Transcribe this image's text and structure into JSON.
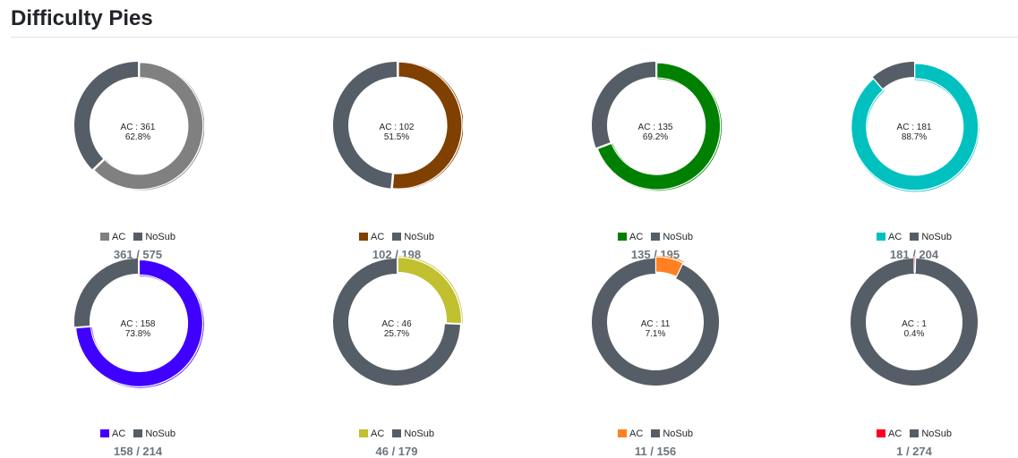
{
  "page": {
    "title": "Difficulty Pies"
  },
  "nosub_color": "#555e66",
  "chart_data": [
    {
      "type": "pie",
      "color": "#808080",
      "series": [
        {
          "name": "AC",
          "value": 361
        },
        {
          "name": "NoSub",
          "value": 214
        }
      ],
      "center": {
        "line1": "AC : 361",
        "line2": "62.8%"
      },
      "legend": [
        "AC",
        "NoSub"
      ],
      "count": "361 / 575"
    },
    {
      "type": "pie",
      "color": "#804000",
      "series": [
        {
          "name": "AC",
          "value": 102
        },
        {
          "name": "NoSub",
          "value": 96
        }
      ],
      "center": {
        "line1": "AC : 102",
        "line2": "51.5%"
      },
      "legend": [
        "AC",
        "NoSub"
      ],
      "count": "102 / 198"
    },
    {
      "type": "pie",
      "color": "#008000",
      "series": [
        {
          "name": "AC",
          "value": 135
        },
        {
          "name": "NoSub",
          "value": 60
        }
      ],
      "center": {
        "line1": "AC : 135",
        "line2": "69.2%"
      },
      "legend": [
        "AC",
        "NoSub"
      ],
      "count": "135 / 195"
    },
    {
      "type": "pie",
      "color": "#00c0c0",
      "series": [
        {
          "name": "AC",
          "value": 181
        },
        {
          "name": "NoSub",
          "value": 23
        }
      ],
      "center": {
        "line1": "AC : 181",
        "line2": "88.7%"
      },
      "legend": [
        "AC",
        "NoSub"
      ],
      "count": "181 / 204"
    },
    {
      "type": "pie",
      "color": "#4000ff",
      "series": [
        {
          "name": "AC",
          "value": 158
        },
        {
          "name": "NoSub",
          "value": 56
        }
      ],
      "center": {
        "line1": "AC : 158",
        "line2": "73.8%"
      },
      "legend": [
        "AC",
        "NoSub"
      ],
      "count": "158 / 214"
    },
    {
      "type": "pie",
      "color": "#c0c030",
      "series": [
        {
          "name": "AC",
          "value": 46
        },
        {
          "name": "NoSub",
          "value": 133
        }
      ],
      "center": {
        "line1": "AC : 46",
        "line2": "25.7%"
      },
      "legend": [
        "AC",
        "NoSub"
      ],
      "count": "46 / 179"
    },
    {
      "type": "pie",
      "color": "#ff8020",
      "series": [
        {
          "name": "AC",
          "value": 11
        },
        {
          "name": "NoSub",
          "value": 145
        }
      ],
      "center": {
        "line1": "AC : 11",
        "line2": "7.1%"
      },
      "legend": [
        "AC",
        "NoSub"
      ],
      "count": "11 / 156"
    },
    {
      "type": "pie",
      "color": "#ff0020",
      "series": [
        {
          "name": "AC",
          "value": 1
        },
        {
          "name": "NoSub",
          "value": 273
        }
      ],
      "center": {
        "line1": "AC : 1",
        "line2": "0.4%"
      },
      "legend": [
        "AC",
        "NoSub"
      ],
      "count": "1 / 274"
    }
  ]
}
